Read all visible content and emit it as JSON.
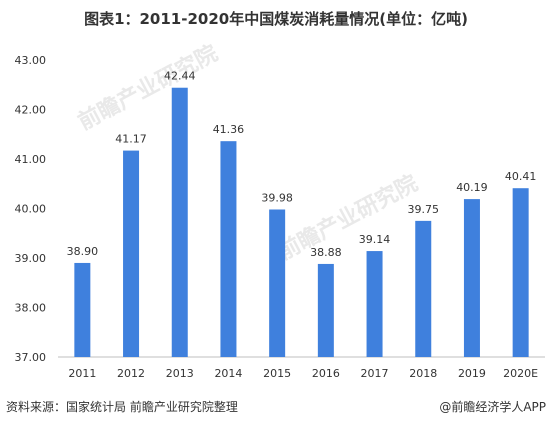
{
  "title": "图表1：2011-2020年中国煤炭消耗量情况(单位：亿吨)",
  "source": "资料来源：国家统计局 前瞻产业研究院整理",
  "credit": "@前瞻经济学人APP",
  "watermark": "前瞻产业研究院",
  "colors": {
    "bar": "#3f80dd",
    "axis": "#bfbfbf",
    "text": "#333333"
  },
  "chart_data": {
    "type": "bar",
    "categories": [
      "2011",
      "2012",
      "2013",
      "2014",
      "2015",
      "2016",
      "2017",
      "2018",
      "2019",
      "2020E"
    ],
    "values": [
      38.9,
      41.17,
      42.44,
      41.36,
      39.98,
      38.88,
      39.14,
      39.75,
      40.19,
      40.41
    ],
    "data_labels": [
      "38.90",
      "41.17",
      "42.44",
      "41.36",
      "39.98",
      "38.88",
      "39.14",
      "39.75",
      "40.19",
      "40.41"
    ],
    "ylim": [
      37.0,
      43.0
    ],
    "yticks": [
      "37.00",
      "38.00",
      "39.00",
      "40.00",
      "41.00",
      "42.00",
      "43.00"
    ],
    "grid": false,
    "title": "图表1：2011-2020年中国煤炭消耗量情况(单位：亿吨)"
  }
}
